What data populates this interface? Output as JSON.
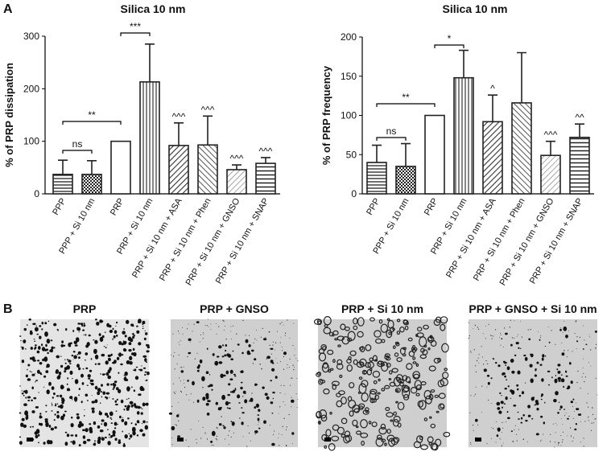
{
  "panel_labels": [
    "A",
    "B"
  ],
  "chart_data": [
    {
      "type": "bar",
      "title": "Silica 10 nm",
      "y_label": "% of PRP dissipation",
      "categories": [
        "PPP",
        "PPP + Si 10 nm",
        "PRP",
        "PRP + Si 10 nm",
        "PRP + Si 10 nm + ASA",
        "PRP + Si 10 nm + Phen",
        "PRP + Si 10 nm + GNSO",
        "PRP + Si 10 nm + SNAP"
      ],
      "values": [
        37,
        37,
        100,
        213,
        92,
        93,
        46,
        58
      ],
      "errors": [
        27,
        26,
        null,
        72,
        43,
        55,
        9,
        11
      ],
      "bar_labels": [
        null,
        null,
        null,
        null,
        "^^^",
        "^^^",
        "^^^",
        "^^^"
      ],
      "bracket_labels": [
        "ns",
        "**",
        "***"
      ],
      "color": "#222222",
      "ylim": [
        0,
        300
      ],
      "yticks": [
        0,
        100,
        200,
        300
      ]
    },
    {
      "type": "bar",
      "title": "Silica 10 nm",
      "y_label": "% of PRP frequency",
      "categories": [
        "PPP",
        "PPP + Si 10 nm",
        "PRP",
        "PRP + Si 10 nm",
        "PRP + Si 10 nm + ASA",
        "PRP + Si 10 nm + Phen",
        "PRP + Si 10 nm + GNSO",
        "PRP + Si 10 nm + SNAP"
      ],
      "values": [
        40,
        35,
        100,
        148,
        92,
        116,
        49,
        72
      ],
      "errors": [
        22,
        29,
        null,
        35,
        34,
        64,
        18,
        17
      ],
      "bar_labels": [
        null,
        null,
        null,
        null,
        "^",
        null,
        "^^^",
        "^^"
      ],
      "bracket_labels": [
        "ns",
        "**",
        "*"
      ],
      "color": "#222222",
      "ylim": [
        0,
        200
      ],
      "yticks": [
        0,
        50,
        100,
        150,
        200
      ]
    }
  ],
  "micrographs": [
    {
      "title": "PRP"
    },
    {
      "title": "PRP + GNSO"
    },
    {
      "title": "PRP + Si 10 nm"
    },
    {
      "title": "PRP + GNSO + Si 10 nm"
    }
  ]
}
